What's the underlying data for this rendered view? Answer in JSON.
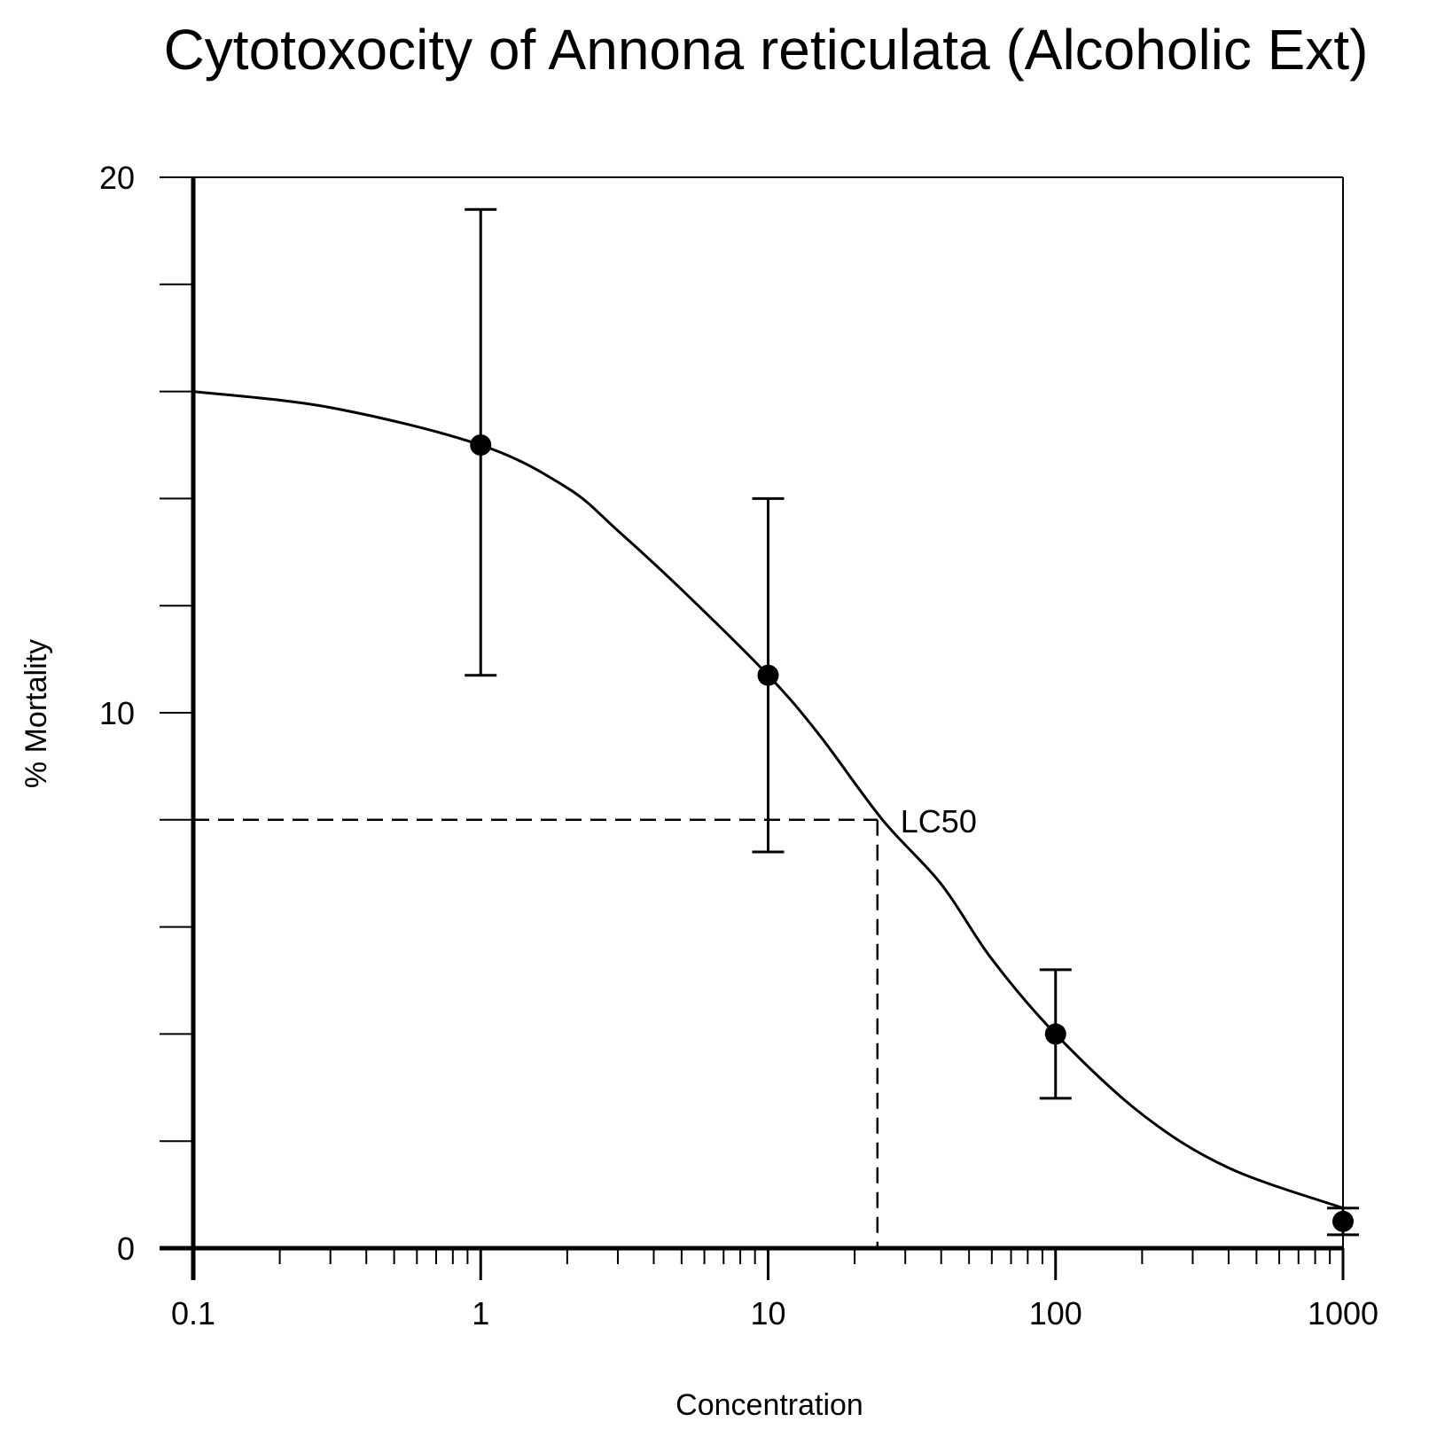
{
  "chart_data": {
    "type": "scatter",
    "title": "Cytotoxocity of Annona reticulata (Alcoholic Ext)",
    "xlabel": "Concentration",
    "ylabel": "% Mortality",
    "x_scale": "log",
    "xlim": [
      0.1,
      1000
    ],
    "ylim": [
      0,
      20
    ],
    "x_ticks": [
      "0.1",
      "1",
      "10",
      "100",
      "1000"
    ],
    "y_ticks": [
      "0",
      "10",
      "20"
    ],
    "series": [
      {
        "points": [
          {
            "x": 1,
            "y": 15.0,
            "err_low": 10.7,
            "err_high": 19.4
          },
          {
            "x": 10,
            "y": 10.7,
            "err_low": 7.4,
            "err_high": 14.0
          },
          {
            "x": 100,
            "y": 4.0,
            "err_low": 2.8,
            "err_high": 5.2
          },
          {
            "x": 1000,
            "y": 0.5,
            "err_low": 0.25,
            "err_high": 0.75
          }
        ]
      }
    ],
    "fit_curve": {
      "type": "sigmoid",
      "points": [
        {
          "x": 0.1,
          "y": 16.0
        },
        {
          "x": 0.3,
          "y": 15.7
        },
        {
          "x": 1,
          "y": 15.0
        },
        {
          "x": 2,
          "y": 14.2
        },
        {
          "x": 3,
          "y": 13.4
        },
        {
          "x": 5,
          "y": 12.3
        },
        {
          "x": 10,
          "y": 10.7
        },
        {
          "x": 15,
          "y": 9.6
        },
        {
          "x": 25,
          "y": 8.0
        },
        {
          "x": 40,
          "y": 6.8
        },
        {
          "x": 60,
          "y": 5.4
        },
        {
          "x": 100,
          "y": 4.0
        },
        {
          "x": 200,
          "y": 2.5
        },
        {
          "x": 400,
          "y": 1.5
        },
        {
          "x": 1000,
          "y": 0.75
        }
      ]
    },
    "annotations": [
      {
        "text": "LC50",
        "x": 24,
        "y": 8.0
      }
    ],
    "grid": false,
    "legend": "none"
  }
}
